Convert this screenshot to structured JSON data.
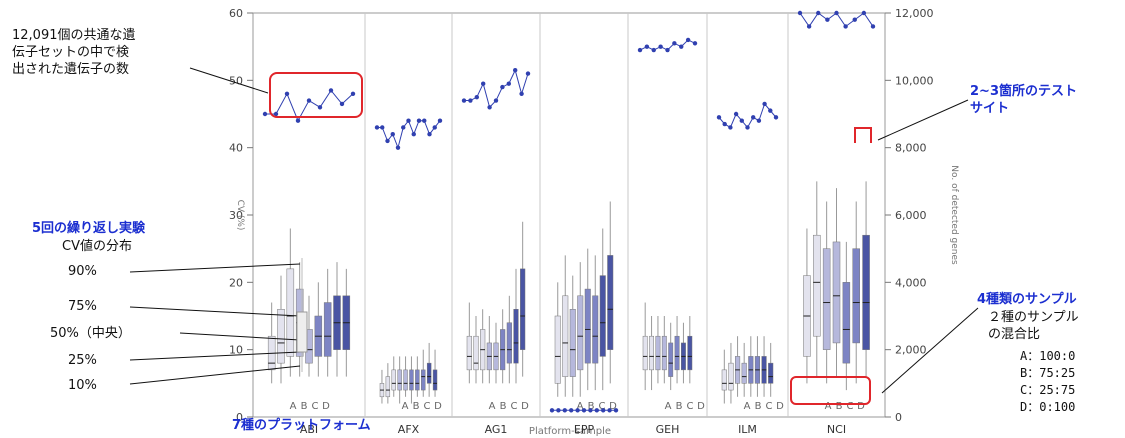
{
  "annotations": {
    "common_genes": [
      "12,091個の共通な遺",
      "伝子セットの中で検",
      "出された遺伝子の数"
    ],
    "test_sites": [
      "2~3箇所のテスト",
      "サイト"
    ],
    "replicates_title": "5回の繰り返し実験",
    "replicates_sub": "CV値の分布",
    "percentiles": [
      "90%",
      "75%",
      "50%（中央）",
      "25%",
      "10%"
    ],
    "samples_title": "4種類のサンプル",
    "samples_sub": [
      "２種のサンプル",
      "の混合比"
    ],
    "ratios": [
      "A：100:0",
      "B：75:25",
      "C：25:75",
      "D：0:100"
    ],
    "platforms_caption": "7種のプラットフォーム"
  },
  "colors": {
    "accent_blue": "#1c2fd0",
    "box_dark": "#4a55a3",
    "box_mid": "#7d84c4",
    "box_light": "#b6b8dc",
    "box_pale": "#e3e3ee",
    "callout_red": "#e0262b",
    "line_blue": "#3040b0"
  },
  "chart_data": {
    "type": "box",
    "xlabel": "Platform-sample",
    "ylabel_left": "CV (%)",
    "ylabel_right": "No. of detected genes",
    "ylim_left": [
      0,
      60
    ],
    "ylim_right": [
      0,
      12000
    ],
    "yticks_left": [
      "0",
      "10",
      "20",
      "30",
      "40",
      "50",
      "60"
    ],
    "yticks_right": [
      "0",
      "2,000",
      "4,000",
      "6,000",
      "8,000",
      "10,000",
      "12,000"
    ],
    "sample_letters": [
      "A",
      "B",
      "C",
      "D"
    ],
    "platforms": [
      {
        "name": "ABI",
        "detected_genes": [
          9000,
          9000,
          9600,
          8800,
          9400,
          9200,
          9700,
          9300,
          9600
        ],
        "boxes": [
          [
            5,
            7,
            8,
            12,
            17
          ],
          [
            5,
            8,
            11,
            16,
            21
          ],
          [
            6,
            9,
            15,
            22,
            28
          ],
          [
            6,
            9,
            14,
            19,
            23
          ],
          [
            6,
            8,
            10,
            13,
            18
          ],
          [
            6,
            9,
            12,
            15,
            20
          ],
          [
            6,
            9,
            12,
            17,
            22
          ],
          [
            6,
            10,
            14,
            18,
            23
          ],
          [
            6,
            10,
            14,
            18,
            22
          ]
        ]
      },
      {
        "name": "AFX",
        "detected_genes": [
          8600,
          8600,
          8200,
          8400,
          8000,
          8600,
          8800,
          8400,
          8800,
          8800,
          8400,
          8600,
          8800
        ],
        "boxes": [
          [
            2,
            3,
            4,
            5,
            7
          ],
          [
            2,
            3,
            4,
            6,
            8
          ],
          [
            3,
            4,
            5,
            7,
            9
          ],
          [
            2,
            4,
            5,
            7,
            9
          ],
          [
            3,
            4,
            5,
            7,
            9
          ],
          [
            2,
            4,
            5,
            7,
            9
          ],
          [
            3,
            4,
            5,
            7,
            9
          ],
          [
            3,
            4,
            6,
            7,
            10
          ],
          [
            3,
            5,
            6,
            8,
            11
          ],
          [
            3,
            4,
            5,
            7,
            10
          ]
        ]
      },
      {
        "name": "AG1",
        "detected_genes": [
          9400,
          9400,
          9500,
          9900,
          9200,
          9400,
          9800,
          9900,
          10300,
          9600,
          10200
        ],
        "boxes": [
          [
            5,
            7,
            9,
            12,
            17
          ],
          [
            5,
            7,
            8,
            12,
            15
          ],
          [
            5,
            7,
            10,
            13,
            16
          ],
          [
            5,
            7,
            9,
            11,
            15
          ],
          [
            5,
            7,
            9,
            11,
            14
          ],
          [
            5,
            7,
            10,
            13,
            16
          ],
          [
            5,
            8,
            10,
            14,
            18
          ],
          [
            5,
            8,
            11,
            16,
            22
          ],
          [
            6,
            10,
            15,
            22,
            29
          ]
        ]
      },
      {
        "name": "EPP",
        "detected_genes": [
          200,
          200,
          200,
          200,
          200,
          200,
          200,
          200,
          200,
          200,
          200
        ],
        "boxes": [
          [
            3,
            5,
            9,
            15,
            20
          ],
          [
            3,
            6,
            11,
            18,
            24
          ],
          [
            3,
            6,
            10,
            16,
            21
          ],
          [
            3,
            7,
            12,
            18,
            23
          ],
          [
            4,
            8,
            13,
            19,
            25
          ],
          [
            4,
            8,
            12,
            18,
            24
          ],
          [
            4,
            9,
            14,
            21,
            28
          ],
          [
            5,
            10,
            16,
            24,
            32
          ]
        ]
      },
      {
        "name": "GEH",
        "detected_genes": [
          10900,
          11000,
          10900,
          11000,
          10900,
          11100,
          11000,
          11200,
          11100
        ],
        "boxes": [
          [
            4,
            7,
            9,
            12,
            17
          ],
          [
            4,
            7,
            9,
            12,
            15
          ],
          [
            5,
            7,
            9,
            12,
            15
          ],
          [
            5,
            7,
            9,
            12,
            15
          ],
          [
            4,
            6,
            8,
            11,
            14
          ],
          [
            5,
            7,
            9,
            12,
            15
          ],
          [
            5,
            7,
            9,
            11,
            14
          ],
          [
            5,
            7,
            9,
            12,
            15
          ]
        ]
      },
      {
        "name": "ILM",
        "detected_genes": [
          8900,
          8700,
          8600,
          9000,
          8800,
          8600,
          8900,
          8800,
          9300,
          9100,
          8900
        ],
        "boxes": [
          [
            2,
            4,
            5,
            7,
            10
          ],
          [
            2,
            4,
            5,
            8,
            11
          ],
          [
            3,
            5,
            7,
            9,
            12
          ],
          [
            3,
            5,
            6,
            8,
            11
          ],
          [
            3,
            5,
            7,
            9,
            12
          ],
          [
            3,
            5,
            7,
            9,
            12
          ],
          [
            3,
            5,
            7,
            9,
            12
          ],
          [
            3,
            5,
            6,
            8,
            11
          ]
        ]
      },
      {
        "name": "NCI",
        "detected_genes": [
          12000,
          11600,
          12000,
          11800,
          12000,
          11600,
          11800,
          12000,
          11600
        ],
        "boxes": [
          [
            5,
            9,
            15,
            21,
            28
          ],
          [
            6,
            12,
            20,
            27,
            35
          ],
          [
            5,
            10,
            17,
            25,
            32
          ],
          [
            6,
            11,
            18,
            26,
            34
          ],
          [
            4,
            8,
            13,
            20,
            26
          ],
          [
            5,
            11,
            17,
            25,
            32
          ],
          [
            6,
            10,
            17,
            27,
            35
          ]
        ]
      }
    ]
  }
}
